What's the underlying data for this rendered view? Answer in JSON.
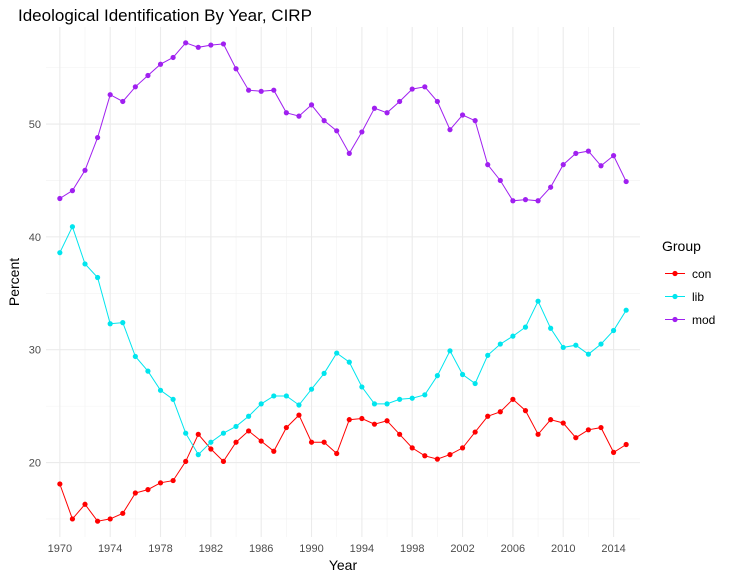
{
  "chart_data": {
    "type": "line",
    "title": "Ideological Identification By Year, CIRP",
    "xlabel": "Year",
    "ylabel": "Percent",
    "xlim": [
      1968.9,
      2016.1
    ],
    "ylim": [
      13.4,
      58.6
    ],
    "x_ticks": [
      1970,
      1974,
      1978,
      1982,
      1986,
      1990,
      1994,
      1998,
      2002,
      2006,
      2010,
      2014
    ],
    "y_ticks": [
      20,
      30,
      40,
      50
    ],
    "grid": true,
    "legend_title": "Group",
    "legend_position": "right",
    "x": [
      1970,
      1971,
      1972,
      1973,
      1974,
      1975,
      1976,
      1977,
      1978,
      1979,
      1980,
      1981,
      1982,
      1983,
      1984,
      1985,
      1986,
      1987,
      1988,
      1989,
      1990,
      1991,
      1992,
      1993,
      1994,
      1995,
      1996,
      1997,
      1998,
      1999,
      2000,
      2001,
      2002,
      2003,
      2004,
      2005,
      2006,
      2007,
      2008,
      2009,
      2010,
      2011,
      2012,
      2013,
      2014,
      2015
    ],
    "series": [
      {
        "name": "con",
        "color": "#ff0000",
        "values": [
          18.1,
          15.0,
          16.3,
          14.8,
          15.0,
          15.5,
          17.3,
          17.6,
          18.2,
          18.4,
          20.1,
          22.5,
          21.2,
          20.1,
          21.8,
          22.8,
          21.9,
          21.0,
          23.1,
          24.2,
          21.8,
          21.8,
          20.8,
          23.8,
          23.9,
          23.4,
          23.7,
          22.5,
          21.3,
          20.6,
          20.3,
          20.7,
          21.3,
          22.7,
          24.1,
          24.5,
          25.6,
          24.6,
          22.5,
          23.8,
          23.5,
          22.2,
          22.9,
          23.1,
          20.9,
          21.6
        ]
      },
      {
        "name": "lib",
        "color": "#00e5ee",
        "values": [
          38.6,
          40.9,
          37.6,
          36.4,
          32.3,
          32.4,
          29.4,
          28.1,
          26.4,
          25.6,
          22.6,
          20.7,
          21.8,
          22.6,
          23.2,
          24.1,
          25.2,
          25.9,
          25.9,
          25.1,
          26.5,
          27.9,
          29.7,
          28.9,
          26.7,
          25.2,
          25.2,
          25.6,
          25.7,
          26.0,
          27.7,
          29.9,
          27.8,
          27.0,
          29.5,
          30.5,
          31.2,
          32.0,
          34.3,
          31.9,
          30.2,
          30.4,
          29.6,
          30.5,
          31.7,
          33.5
        ]
      },
      {
        "name": "mod",
        "color": "#a020f0",
        "values": [
          43.4,
          44.1,
          45.9,
          48.8,
          52.6,
          52.0,
          53.3,
          54.3,
          55.3,
          55.9,
          57.2,
          56.8,
          57.0,
          57.1,
          54.9,
          53.0,
          52.9,
          53.0,
          51.0,
          50.7,
          51.7,
          50.3,
          49.4,
          47.4,
          49.3,
          51.4,
          51.0,
          52.0,
          53.1,
          53.3,
          52.0,
          49.5,
          50.8,
          50.3,
          46.4,
          45.0,
          43.2,
          43.3,
          43.2,
          44.4,
          46.4,
          47.4,
          47.6,
          46.3,
          47.2,
          44.9
        ]
      }
    ]
  }
}
